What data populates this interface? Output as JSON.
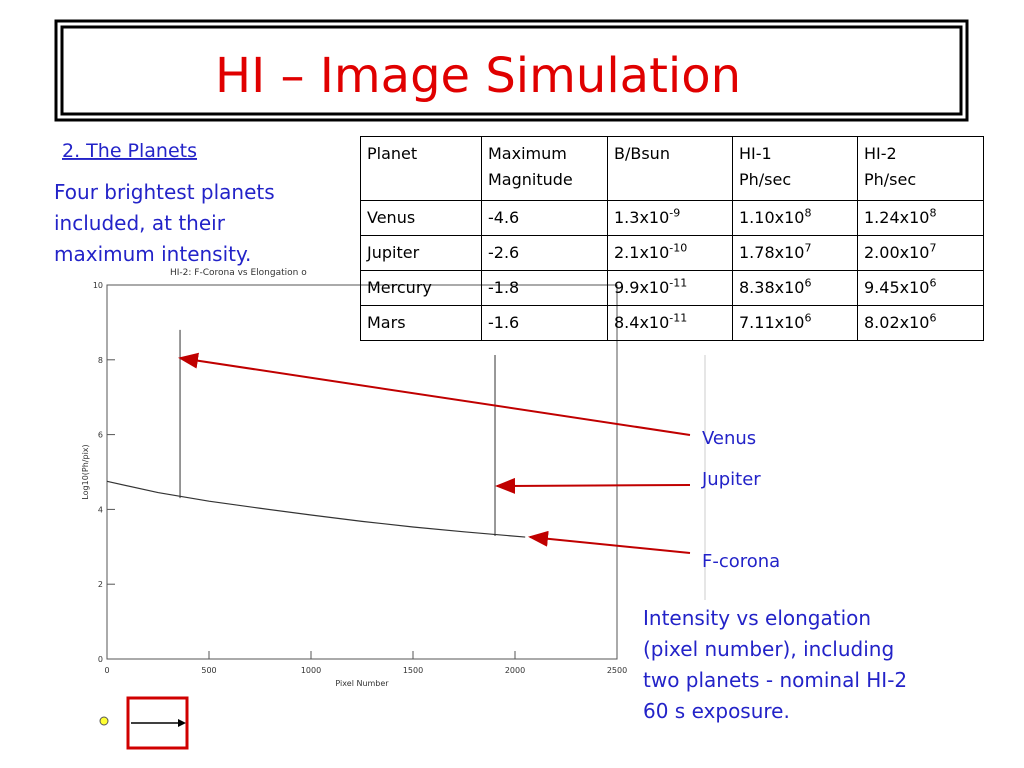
{
  "header": {
    "title": "HI – Image Simulation"
  },
  "intro": {
    "heading": "2. The Planets",
    "lines": [
      "Four brightest planets",
      "included, at their",
      "maximum intensity."
    ]
  },
  "table": {
    "header": [
      [
        "Planet"
      ],
      [
        "Maximum",
        "Magnitude"
      ],
      [
        "B/Bsun"
      ],
      [
        "HI-1",
        "Ph/sec"
      ],
      [
        "HI-2",
        "Ph/sec"
      ]
    ],
    "rows": [
      [
        "Venus",
        "-4.6",
        {
          "base": "1.3x10",
          "exp": "-9"
        },
        {
          "base": "1.10x10",
          "exp": "8"
        },
        {
          "base": "1.24x10",
          "exp": "8"
        }
      ],
      [
        "Jupiter",
        "-2.6",
        {
          "base": "2.1x10",
          "exp": "-10"
        },
        {
          "base": "1.78x10",
          "exp": "7"
        },
        {
          "base": "2.00x10",
          "exp": "7"
        }
      ],
      [
        "Mercury",
        "-1.8",
        {
          "base": "9.9x10",
          "exp": "-11"
        },
        {
          "base": "8.38x10",
          "exp": "6"
        },
        {
          "base": "9.45x10",
          "exp": "6"
        }
      ],
      [
        "Mars",
        "-1.6",
        {
          "base": "8.4x10",
          "exp": "-11"
        },
        {
          "base": "7.11x10",
          "exp": "6"
        },
        {
          "base": "8.02x10",
          "exp": "6"
        }
      ]
    ]
  },
  "plot": {
    "title": "HI-2: F-Corona vs Elongation o",
    "x_label": "Pixel Number",
    "y_label": "Log10(Ph/pix)",
    "xlim": [
      0,
      2500
    ],
    "ylim": [
      0,
      10
    ],
    "xticks": [
      0,
      500,
      1000,
      1500,
      2000,
      2500
    ],
    "yticks": [
      0,
      2,
      4,
      6,
      8,
      10
    ],
    "x": [
      0,
      250,
      500,
      750,
      1000,
      1250,
      1500,
      1750,
      2050
    ],
    "y": [
      4.75,
      4.45,
      4.22,
      4.03,
      3.85,
      3.68,
      3.53,
      3.4,
      3.26
    ],
    "spikes": [
      {
        "x": 358,
        "base": 4.3,
        "top": 8.8
      },
      {
        "x": 1902,
        "base": 3.29,
        "top": 8.13
      }
    ]
  },
  "callouts": [
    "Venus",
    "Jupiter",
    "F-corona"
  ],
  "caption": {
    "lines": [
      "Intensity vs elongation",
      "(pixel number), including",
      "two planets - nominal HI-2",
      "60 s exposure."
    ]
  }
}
